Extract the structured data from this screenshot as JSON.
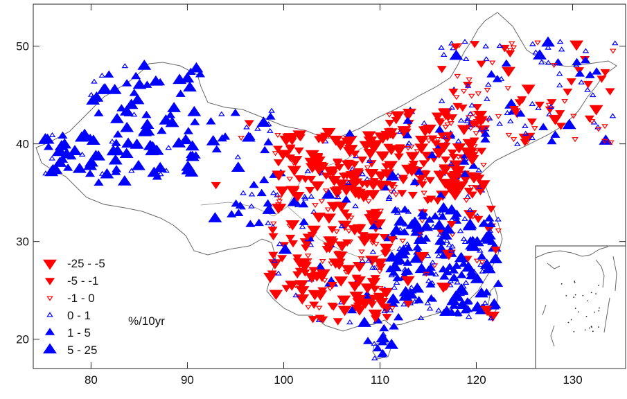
{
  "map": {
    "x_ticks": [
      {
        "value": 80,
        "label": "80"
      },
      {
        "value": 90,
        "label": "90"
      },
      {
        "value": 100,
        "label": "100"
      },
      {
        "value": 110,
        "label": "110"
      },
      {
        "value": 120,
        "label": "120"
      },
      {
        "value": 130,
        "label": "130"
      }
    ],
    "y_ticks": [
      {
        "value": 20,
        "label": "20"
      },
      {
        "value": 30,
        "label": "30"
      },
      {
        "value": 40,
        "label": "40"
      },
      {
        "value": 50,
        "label": "50"
      }
    ],
    "xlim": [
      74,
      135.5
    ],
    "ylim": [
      17,
      54.3
    ],
    "unit_label": "%/10yr",
    "legend": [
      {
        "label": "-25  -  -5",
        "color": "#ff0000",
        "direction": "down",
        "filled": true,
        "size": "large"
      },
      {
        "label": "-5  -  -1",
        "color": "#ff0000",
        "direction": "down",
        "filled": true,
        "size": "medium"
      },
      {
        "label": "-1  -  0",
        "color": "#ff0000",
        "direction": "down",
        "filled": false,
        "size": "small"
      },
      {
        "label": "0  -  1",
        "color": "#0000ff",
        "direction": "up",
        "filled": false,
        "size": "small"
      },
      {
        "label": "1  -  5",
        "color": "#0000ff",
        "direction": "up",
        "filled": true,
        "size": "medium"
      },
      {
        "label": "5  -  25",
        "color": "#0000ff",
        "direction": "up",
        "filled": true,
        "size": "large"
      }
    ],
    "colors": {
      "negative": "#ff0000",
      "positive": "#0000ff",
      "border": "#555555"
    }
  }
}
